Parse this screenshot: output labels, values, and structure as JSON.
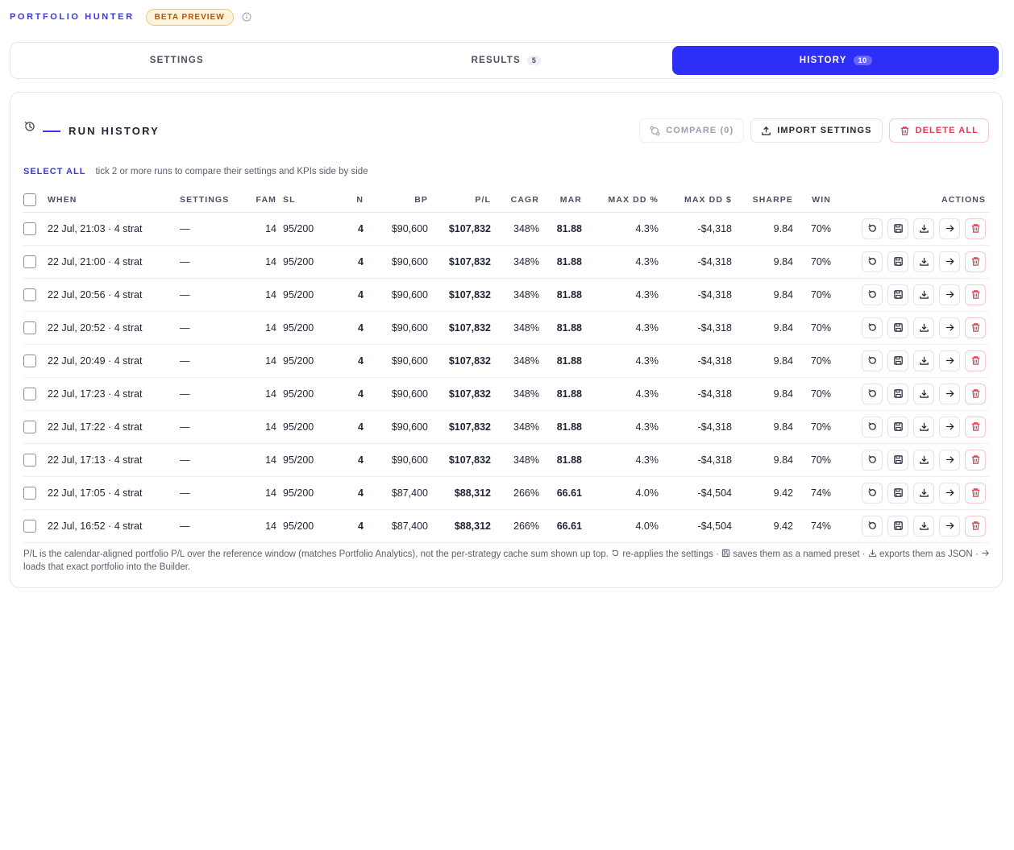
{
  "brand": "PORTFOLIO HUNTER",
  "beta_badge": "BETA PREVIEW",
  "tabs": [
    {
      "label": "SETTINGS",
      "count": ""
    },
    {
      "label": "RESULTS",
      "count": "5"
    },
    {
      "label": "HISTORY",
      "count": "10"
    }
  ],
  "history": {
    "title": "RUN HISTORY",
    "compare_label": "COMPARE (0)",
    "import_label": "IMPORT SETTINGS",
    "delete_all_label": "DELETE ALL",
    "select_all_label": "SELECT ALL",
    "hint": "tick 2 or more runs to compare their settings and KPIs side by side"
  },
  "table": {
    "headers": {
      "when": "WHEN",
      "settings": "SETTINGS",
      "fam": "FAM",
      "sl": "SL",
      "n": "N",
      "bp": "BP",
      "pl": "P/L",
      "cagr": "CAGR",
      "mar": "MAR",
      "maxdd_pct": "MAX DD %",
      "maxdd_usd": "MAX DD $",
      "sharpe": "SHARPE",
      "win": "WIN",
      "actions": "ACTIONS"
    },
    "rows": [
      {
        "when": "22 Jul, 21:03 · 4 strat",
        "settings": "—",
        "fam": "14",
        "sl": "95/200",
        "n": "4",
        "bp": "$90,600",
        "pl": "$107,832",
        "cagr": "348%",
        "mar": "81.88",
        "maxdd_pct": "4.3%",
        "maxdd_usd": "-$4,318",
        "sharpe": "9.84",
        "win": "70%"
      },
      {
        "when": "22 Jul, 21:00 · 4 strat",
        "settings": "—",
        "fam": "14",
        "sl": "95/200",
        "n": "4",
        "bp": "$90,600",
        "pl": "$107,832",
        "cagr": "348%",
        "mar": "81.88",
        "maxdd_pct": "4.3%",
        "maxdd_usd": "-$4,318",
        "sharpe": "9.84",
        "win": "70%"
      },
      {
        "when": "22 Jul, 20:56 · 4 strat",
        "settings": "—",
        "fam": "14",
        "sl": "95/200",
        "n": "4",
        "bp": "$90,600",
        "pl": "$107,832",
        "cagr": "348%",
        "mar": "81.88",
        "maxdd_pct": "4.3%",
        "maxdd_usd": "-$4,318",
        "sharpe": "9.84",
        "win": "70%"
      },
      {
        "when": "22 Jul, 20:52 · 4 strat",
        "settings": "—",
        "fam": "14",
        "sl": "95/200",
        "n": "4",
        "bp": "$90,600",
        "pl": "$107,832",
        "cagr": "348%",
        "mar": "81.88",
        "maxdd_pct": "4.3%",
        "maxdd_usd": "-$4,318",
        "sharpe": "9.84",
        "win": "70%"
      },
      {
        "when": "22 Jul, 20:49 · 4 strat",
        "settings": "—",
        "fam": "14",
        "sl": "95/200",
        "n": "4",
        "bp": "$90,600",
        "pl": "$107,832",
        "cagr": "348%",
        "mar": "81.88",
        "maxdd_pct": "4.3%",
        "maxdd_usd": "-$4,318",
        "sharpe": "9.84",
        "win": "70%"
      },
      {
        "when": "22 Jul, 17:23 · 4 strat",
        "settings": "—",
        "fam": "14",
        "sl": "95/200",
        "n": "4",
        "bp": "$90,600",
        "pl": "$107,832",
        "cagr": "348%",
        "mar": "81.88",
        "maxdd_pct": "4.3%",
        "maxdd_usd": "-$4,318",
        "sharpe": "9.84",
        "win": "70%"
      },
      {
        "when": "22 Jul, 17:22 · 4 strat",
        "settings": "—",
        "fam": "14",
        "sl": "95/200",
        "n": "4",
        "bp": "$90,600",
        "pl": "$107,832",
        "cagr": "348%",
        "mar": "81.88",
        "maxdd_pct": "4.3%",
        "maxdd_usd": "-$4,318",
        "sharpe": "9.84",
        "win": "70%"
      },
      {
        "when": "22 Jul, 17:13 · 4 strat",
        "settings": "—",
        "fam": "14",
        "sl": "95/200",
        "n": "4",
        "bp": "$90,600",
        "pl": "$107,832",
        "cagr": "348%",
        "mar": "81.88",
        "maxdd_pct": "4.3%",
        "maxdd_usd": "-$4,318",
        "sharpe": "9.84",
        "win": "70%"
      },
      {
        "when": "22 Jul, 17:05 · 4 strat",
        "settings": "—",
        "fam": "14",
        "sl": "95/200",
        "n": "4",
        "bp": "$87,400",
        "pl": "$88,312",
        "cagr": "266%",
        "mar": "66.61",
        "maxdd_pct": "4.0%",
        "maxdd_usd": "-$4,504",
        "sharpe": "9.42",
        "win": "74%"
      },
      {
        "when": "22 Jul, 16:52 · 4 strat",
        "settings": "—",
        "fam": "14",
        "sl": "95/200",
        "n": "4",
        "bp": "$87,400",
        "pl": "$88,312",
        "cagr": "266%",
        "mar": "66.61",
        "maxdd_pct": "4.0%",
        "maxdd_usd": "-$4,504",
        "sharpe": "9.42",
        "win": "74%"
      }
    ]
  },
  "footnote": {
    "part1": "P/L is the calendar-aligned portfolio P/L over the reference window (matches Portfolio Analytics), not the per-strategy cache sum shown up top.",
    "part2": "re-applies the settings ·",
    "part3": "saves them as a named preset ·",
    "part4": "exports them as JSON ·",
    "part5": "loads that exact portfolio into the Builder."
  },
  "colors": {
    "accent": "#2d2ef6",
    "danger": "#e03a4e",
    "beta_bg": "#fff3dc",
    "beta_text": "#b4560e"
  },
  "icons": [
    "info-icon",
    "history-icon",
    "compare-icon",
    "upload-icon",
    "trash-icon",
    "rerun-icon",
    "save-icon",
    "download-icon",
    "arrow-right-icon"
  ]
}
